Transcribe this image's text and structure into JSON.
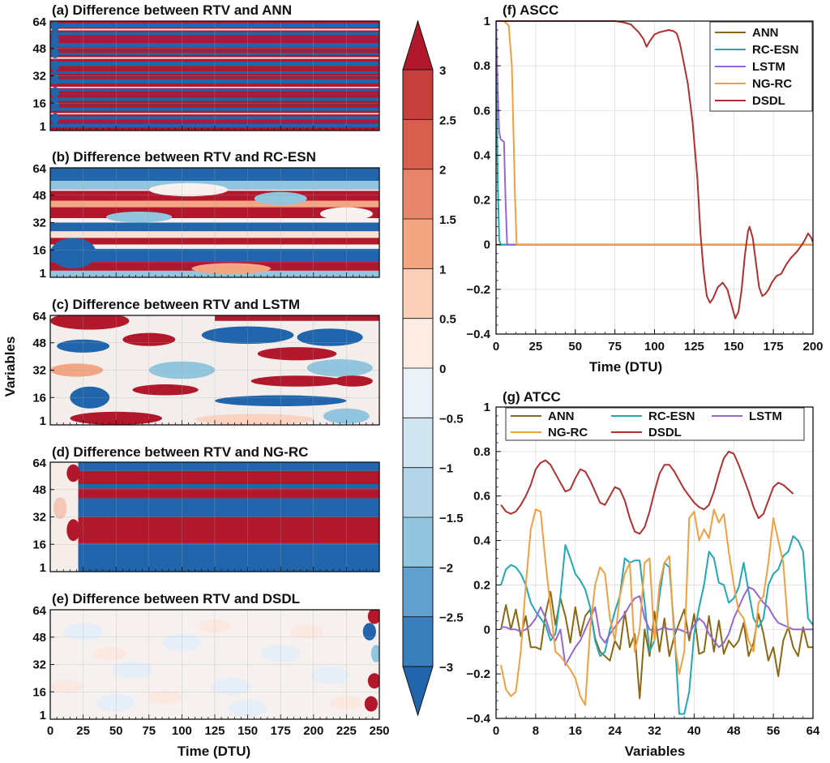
{
  "heatmaps": [
    {
      "id": "a",
      "title": "(a) Difference between RTV and ANN",
      "model": "ANN"
    },
    {
      "id": "b",
      "title": "(b) Difference between RTV and RC-ESN",
      "model": "RC-ESN"
    },
    {
      "id": "c",
      "title": "(c) Difference between RTV and LSTM",
      "model": "LSTM"
    },
    {
      "id": "d",
      "title": "(d) Difference between RTV and NG-RC",
      "model": "NG-RC"
    },
    {
      "id": "e",
      "title": "(e) Difference between RTV and DSDL",
      "model": "DSDL"
    }
  ],
  "heatmap_axes": {
    "ylabel": "Variables",
    "xlabel": "Time (DTU)",
    "y_ticks": [
      "64",
      "48",
      "32",
      "16",
      "1"
    ],
    "x_ticks": [
      "0",
      "25",
      "50",
      "75",
      "100",
      "125",
      "150",
      "175",
      "200",
      "225",
      "250"
    ]
  },
  "colorbar": {
    "tick_labels": [
      "3",
      "2.5",
      "2",
      "1.5",
      "1",
      "0.5",
      "0",
      "−0.5",
      "−1",
      "−1.5",
      "−2",
      "−2.5",
      "−3"
    ],
    "colors": [
      "#b2182b",
      "#c6403e",
      "#d6604d",
      "#e8866c",
      "#f4a582",
      "#fbcfb8",
      "#fdece3",
      "#ebf1f7",
      "#d1e5f0",
      "#b4d5e8",
      "#92c5de",
      "#5fa1cc",
      "#3a7fbb",
      "#2166ac"
    ]
  },
  "chart_data": [
    {
      "type": "line",
      "title": "(f) ASCC",
      "xlabel": "Time (DTU)",
      "ylabel": "",
      "xlim": [
        0,
        200
      ],
      "ylim": [
        -0.4,
        1.0
      ],
      "x_ticks": [
        "0",
        "25",
        "50",
        "75",
        "100",
        "125",
        "150",
        "175",
        "200"
      ],
      "y_ticks": [
        "1",
        "0.8",
        "0.6",
        "0.4",
        "0.2",
        "0",
        "−0.2",
        "−0.4"
      ],
      "grid": true,
      "legend_position": "top-right",
      "series": [
        {
          "name": "ANN",
          "color": "#8b6914",
          "points": [
            [
              0,
              0
            ],
            [
              200,
              0
            ]
          ]
        },
        {
          "name": "RC-ESN",
          "color": "#20a8b4",
          "points": [
            [
              0,
              1.0
            ],
            [
              0.5,
              0.62
            ],
            [
              1,
              0.3
            ],
            [
              2,
              0.02
            ],
            [
              3,
              0
            ],
            [
              200,
              0
            ]
          ]
        },
        {
          "name": "LSTM",
          "color": "#9467d4",
          "points": [
            [
              0,
              1.0
            ],
            [
              1,
              0.7
            ],
            [
              2,
              0.5
            ],
            [
              3,
              0.47
            ],
            [
              5,
              0.46
            ],
            [
              6,
              0.2
            ],
            [
              7,
              0
            ],
            [
              200,
              0
            ]
          ]
        },
        {
          "name": "NG-RC",
          "color": "#f0a040",
          "points": [
            [
              0,
              1.0
            ],
            [
              5,
              1.0
            ],
            [
              8,
              0.98
            ],
            [
              10,
              0.8
            ],
            [
              11,
              0.5
            ],
            [
              12,
              0.2
            ],
            [
              13,
              0
            ],
            [
              200,
              0
            ]
          ]
        },
        {
          "name": "DSDL",
          "color": "#b03030",
          "points": [
            [
              0,
              1.0
            ],
            [
              50,
              1.0
            ],
            [
              75,
              1.0
            ],
            [
              80,
              0.995
            ],
            [
              85,
              0.985
            ],
            [
              90,
              0.95
            ],
            [
              93,
              0.92
            ],
            [
              95,
              0.885
            ],
            [
              97,
              0.91
            ],
            [
              100,
              0.94
            ],
            [
              103,
              0.95
            ],
            [
              106,
              0.955
            ],
            [
              109,
              0.96
            ],
            [
              112,
              0.955
            ],
            [
              114,
              0.945
            ],
            [
              116,
              0.9
            ],
            [
              118,
              0.83
            ],
            [
              121,
              0.72
            ],
            [
              124,
              0.55
            ],
            [
              127,
              0.3
            ],
            [
              129,
              0.05
            ],
            [
              131,
              -0.12
            ],
            [
              133,
              -0.23
            ],
            [
              135,
              -0.26
            ],
            [
              137,
              -0.24
            ],
            [
              140,
              -0.19
            ],
            [
              143,
              -0.17
            ],
            [
              146,
              -0.2
            ],
            [
              149,
              -0.28
            ],
            [
              151,
              -0.33
            ],
            [
              153,
              -0.3
            ],
            [
              155,
              -0.2
            ],
            [
              157,
              -0.05
            ],
            [
              159,
              0.06
            ],
            [
              160,
              0.08
            ],
            [
              162,
              0.03
            ],
            [
              164,
              -0.08
            ],
            [
              166,
              -0.19
            ],
            [
              168,
              -0.23
            ],
            [
              170,
              -0.22
            ],
            [
              172,
              -0.2
            ],
            [
              174,
              -0.17
            ],
            [
              177,
              -0.14
            ],
            [
              180,
              -0.13
            ],
            [
              183,
              -0.09
            ],
            [
              186,
              -0.06
            ],
            [
              190,
              -0.03
            ],
            [
              194,
              0.01
            ],
            [
              197,
              0.05
            ],
            [
              199,
              0.03
            ],
            [
              200,
              0.01
            ]
          ]
        }
      ]
    },
    {
      "type": "line",
      "title": "(g) ATCC",
      "xlabel": "Variables",
      "ylabel": "",
      "xlim": [
        0,
        64
      ],
      "ylim": [
        -0.4,
        1.0
      ],
      "x_ticks": [
        "0",
        "8",
        "16",
        "24",
        "32",
        "40",
        "48",
        "56",
        "64"
      ],
      "y_ticks": [
        "1",
        "0.8",
        "0.6",
        "0.4",
        "0.2",
        "0",
        "−0.2",
        "−0.4"
      ],
      "grid": true,
      "legend_position": "top",
      "series": [
        {
          "name": "ANN",
          "color": "#8b6914",
          "x_start": 1,
          "values": [
            0.0,
            0.11,
            0.0,
            0.09,
            -0.03,
            0.06,
            -0.08,
            -0.08,
            -0.09,
            0.07,
            0.17,
            0.02,
            0.14,
            0.06,
            -0.06,
            0.1,
            -0.03,
            0.06,
            0.09,
            -0.04,
            -0.1,
            -0.12,
            -0.14,
            -0.05,
            -0.09,
            0.08,
            -0.08,
            -0.02,
            -0.31,
            0.0,
            -0.12,
            0.08,
            -0.1,
            0.05,
            -0.12,
            -0.03,
            0.03,
            0.09,
            -0.05,
            0.07,
            -0.11,
            -0.1,
            0.06,
            -0.1,
            0.04,
            -0.11,
            -0.05,
            -0.08,
            -0.05,
            0.03,
            -0.12,
            -0.06,
            0.07,
            -0.02,
            -0.14,
            -0.08,
            -0.21,
            -0.05,
            0.01,
            -0.08,
            -0.12,
            0.01,
            -0.08,
            -0.08
          ]
        },
        {
          "name": "RC-ESN",
          "color": "#20a8b4",
          "x_start": 1,
          "values": [
            0.2,
            0.27,
            0.29,
            0.28,
            0.25,
            0.2,
            0.12,
            0.08,
            0.05,
            0.02,
            -0.05,
            -0.02,
            0.15,
            0.38,
            0.32,
            0.25,
            0.22,
            0.18,
            0.1,
            -0.05,
            -0.12,
            -0.1,
            0.0,
            0.08,
            0.15,
            0.32,
            0.3,
            0.31,
            0.31,
            0.12,
            -0.1,
            -0.05,
            0.15,
            0.3,
            0.28,
            0.0,
            -0.38,
            -0.38,
            -0.28,
            -0.02,
            0.1,
            0.2,
            0.35,
            0.32,
            0.21,
            0.2,
            0.12,
            0.14,
            0.19,
            0.3,
            0.17,
            0.05,
            0.01,
            0.05,
            0.2,
            0.25,
            0.27,
            0.33,
            0.35,
            0.42,
            0.4,
            0.35,
            0.05,
            0.02
          ]
        },
        {
          "name": "LSTM",
          "color": "#9467d4",
          "x_start": 1,
          "values": [
            0.01,
            0.01,
            0.0,
            0.0,
            -0.01,
            0.0,
            0.02,
            0.05,
            0.1,
            0.05,
            -0.02,
            -0.05,
            0.0,
            -0.16,
            -0.12,
            -0.08,
            -0.05,
            0.0,
            0.05,
            0.1,
            -0.03,
            -0.06,
            -0.02,
            0.01,
            0.04,
            0.07,
            0.11,
            0.14,
            0.15,
            0.05,
            0.0,
            -0.01,
            0.0,
            0.01,
            0.0,
            0.0,
            0.0,
            -0.01,
            -0.02,
            0.02,
            0.05,
            0.03,
            -0.02,
            -0.05,
            -0.08,
            -0.06,
            -0.02,
            0.05,
            0.1,
            0.15,
            0.19,
            0.18,
            0.15,
            0.12,
            0.1,
            0.06,
            0.03,
            0.02,
            0.01,
            0.0,
            0.0,
            0.0,
            0.0,
            0.0
          ]
        },
        {
          "name": "NG-RC",
          "color": "#f0a040",
          "x_start": 1,
          "values": [
            -0.16,
            -0.27,
            -0.3,
            -0.28,
            -0.1,
            0.2,
            0.45,
            0.54,
            0.53,
            0.3,
            0.1,
            -0.1,
            -0.12,
            -0.15,
            -0.18,
            -0.22,
            -0.3,
            -0.34,
            0.0,
            0.2,
            0.28,
            0.25,
            0.05,
            -0.05,
            0.15,
            0.25,
            0.3,
            -0.1,
            0.0,
            0.3,
            0.32,
            -0.05,
            0.2,
            0.3,
            0.33,
            -0.05,
            -0.2,
            -0.1,
            0.5,
            0.53,
            0.4,
            0.45,
            0.41,
            0.54,
            0.48,
            0.52,
            0.35,
            0.2,
            0.08,
            0.05,
            -0.05,
            -0.1,
            0.12,
            0.15,
            0.3,
            0.5,
            0.4,
            0.3,
            0.0
          ]
        },
        {
          "name": "DSDL",
          "color": "#b03030",
          "x_start": 1,
          "values": [
            0.56,
            0.53,
            0.52,
            0.53,
            0.56,
            0.6,
            0.65,
            0.72,
            0.75,
            0.76,
            0.74,
            0.7,
            0.66,
            0.62,
            0.63,
            0.68,
            0.72,
            0.71,
            0.67,
            0.62,
            0.57,
            0.56,
            0.6,
            0.64,
            0.63,
            0.58,
            0.5,
            0.44,
            0.43,
            0.46,
            0.53,
            0.62,
            0.7,
            0.74,
            0.74,
            0.71,
            0.67,
            0.63,
            0.6,
            0.57,
            0.55,
            0.54,
            0.56,
            0.62,
            0.7,
            0.77,
            0.8,
            0.79,
            0.74,
            0.68,
            0.62,
            0.55,
            0.5,
            0.52,
            0.58,
            0.64,
            0.66,
            0.65,
            0.63,
            0.61
          ]
        }
      ]
    }
  ]
}
